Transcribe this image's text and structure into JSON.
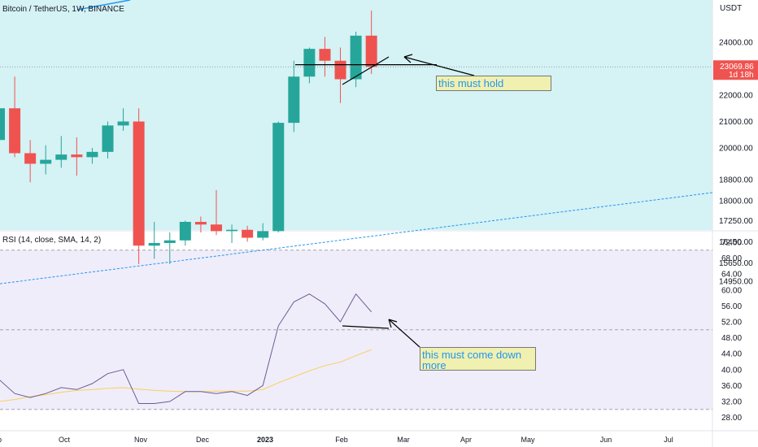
{
  "header": {
    "symbol_title": "Bitcoin / TetherUS, 1W, BINANCE",
    "currency": "USDT"
  },
  "rsi_label": "RSI (14, close, SMA, 14, 2)",
  "price_badge": {
    "value": "23069.86",
    "countdown": "1d 18h",
    "color": "#ef5350"
  },
  "annotations": {
    "price_note": "this must hold",
    "rsi_note": "this must come down more"
  },
  "colors": {
    "price_background": "#d5f2f5",
    "rsi_background": "#f0edfa",
    "bull": "#26a69a",
    "bear": "#ef5350",
    "trendline": "#2196f3",
    "rsi_line": "#6b5b95",
    "rsi_ma": "#f5d36a"
  },
  "chart_data": [
    {
      "type": "candlestick",
      "title": "Bitcoin / TetherUS, 1W, BINANCE",
      "y_axis_unit": "USDT",
      "y_ticks": [
        24000,
        23000,
        22000,
        21000,
        20000,
        18800,
        18000,
        17250,
        16450,
        15650,
        14950
      ],
      "candles": [
        {
          "o": 20300,
          "h": 22600,
          "l": 18900,
          "c": 21500
        },
        {
          "o": 21500,
          "h": 22700,
          "l": 19650,
          "c": 19800
        },
        {
          "o": 19800,
          "h": 20300,
          "l": 18700,
          "c": 19400
        },
        {
          "o": 19400,
          "h": 20100,
          "l": 19000,
          "c": 19550
        },
        {
          "o": 19550,
          "h": 20450,
          "l": 19250,
          "c": 19750
        },
        {
          "o": 19750,
          "h": 20400,
          "l": 18950,
          "c": 19650
        },
        {
          "o": 19650,
          "h": 20000,
          "l": 19400,
          "c": 19850
        },
        {
          "o": 19850,
          "h": 21000,
          "l": 19600,
          "c": 20850
        },
        {
          "o": 20850,
          "h": 21500,
          "l": 20650,
          "c": 21000
        },
        {
          "o": 21000,
          "h": 21500,
          "l": 15600,
          "c": 16300
        },
        {
          "o": 16300,
          "h": 17200,
          "l": 15800,
          "c": 16400
        },
        {
          "o": 16400,
          "h": 16800,
          "l": 15600,
          "c": 16500
        },
        {
          "o": 16500,
          "h": 17250,
          "l": 16300,
          "c": 17200
        },
        {
          "o": 17200,
          "h": 17400,
          "l": 16800,
          "c": 17100
        },
        {
          "o": 17100,
          "h": 18400,
          "l": 16700,
          "c": 16850
        },
        {
          "o": 16850,
          "h": 17100,
          "l": 16400,
          "c": 16900
        },
        {
          "o": 16900,
          "h": 17050,
          "l": 16450,
          "c": 16600
        },
        {
          "o": 16600,
          "h": 17150,
          "l": 16500,
          "c": 16850
        },
        {
          "o": 16850,
          "h": 21000,
          "l": 16800,
          "c": 20950
        },
        {
          "o": 20950,
          "h": 23300,
          "l": 20600,
          "c": 22700
        },
        {
          "o": 22700,
          "h": 23800,
          "l": 22450,
          "c": 23750
        },
        {
          "o": 23750,
          "h": 24200,
          "l": 22700,
          "c": 23300
        },
        {
          "o": 23300,
          "h": 23800,
          "l": 21700,
          "c": 22600
        },
        {
          "o": 22600,
          "h": 24400,
          "l": 22300,
          "c": 24250
        },
        {
          "o": 24250,
          "h": 25200,
          "l": 22800,
          "c": 23069.86
        }
      ],
      "x_labels": [
        "Sep",
        "Oct",
        "Nov",
        "Dec",
        "2023",
        "Feb",
        "Mar",
        "Apr",
        "May",
        "Jun",
        "Jul"
      ]
    },
    {
      "type": "line",
      "title": "RSI (14, close, SMA, 14, 2)",
      "y_ticks": [
        72.0,
        68.0,
        64.0,
        60.0,
        56.0,
        52.0,
        48.0,
        44.0,
        40.0,
        36.0,
        32.0,
        28.0
      ],
      "bands": [
        70,
        50,
        30
      ],
      "series": [
        {
          "name": "RSI",
          "values": [
            37.5,
            34.0,
            33.0,
            34.0,
            35.5,
            35.0,
            36.5,
            39.0,
            40.0,
            31.5,
            31.5,
            32.0,
            34.5,
            34.5,
            34.0,
            34.5,
            33.5,
            36.0,
            51.0,
            57.0,
            59.0,
            56.5,
            52.0,
            59.0,
            54.5
          ]
        },
        {
          "name": "RSI-based MA",
          "values": [
            32.0,
            32.5,
            33.2,
            33.7,
            34.3,
            34.8,
            35.0,
            35.3,
            35.5,
            35.1,
            34.8,
            34.6,
            34.5,
            34.5,
            34.6,
            34.6,
            34.6,
            35.0,
            36.7,
            38.2,
            39.7,
            41.0,
            41.9,
            43.5,
            45.0
          ]
        }
      ]
    }
  ]
}
